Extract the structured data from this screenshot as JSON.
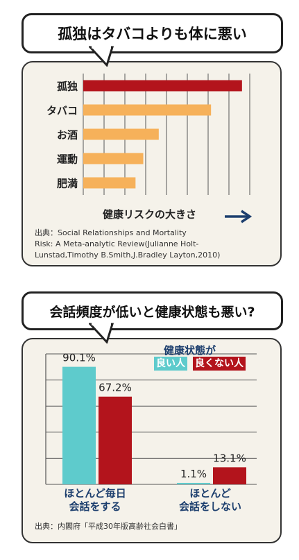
{
  "chart_data": [
    {
      "type": "bar",
      "orientation": "horizontal",
      "title": "孤独はタバコよりも体に悪い",
      "xlabel": "健康リスクの大きさ",
      "categories": [
        "孤独",
        "タバコ",
        "お酒",
        "運動",
        "肥満"
      ],
      "values": [
        8.2,
        6.6,
        3.9,
        3.1,
        2.7
      ],
      "xlim": [
        0,
        8.6
      ],
      "highlight_color": "#b3141c",
      "bar_color": "#f6b15a",
      "grid": true,
      "source": "出典：Social Relationships and Mortality Risk: A Meta-analytic Review(Julianne Holt-Lunstad,Timothy B.Smith,J.Bradley Layton,2010)",
      "source_lines": [
        "出典：Social Relationships and Mortality",
        "Risk: A Meta-analytic Review(Julianne Holt-",
        "Lunstad,Timothy B.Smith,J.Bradley Layton,2010)"
      ]
    },
    {
      "type": "bar",
      "title": "会話頻度が低いと健康状態も悪い?",
      "legend_title": "健康状態が",
      "categories": [
        [
          "ほとんど毎日",
          "会話をする"
        ],
        [
          "ほとんど",
          "会話をしない"
        ]
      ],
      "series": [
        {
          "name": "良い人",
          "color": "#5ecbcc",
          "values": [
            90.1,
            1.1
          ],
          "labels": [
            "90.1%",
            "1.1%"
          ]
        },
        {
          "name": "良くない人",
          "color": "#b3141c",
          "values": [
            67.2,
            13.1
          ],
          "labels": [
            "67.2%",
            "13.1%"
          ]
        }
      ],
      "ylim": [
        0,
        100
      ],
      "grid": true,
      "legend_position": "top-right",
      "source": "出典：内閣府「平成30年版高齢社会白書」"
    }
  ]
}
